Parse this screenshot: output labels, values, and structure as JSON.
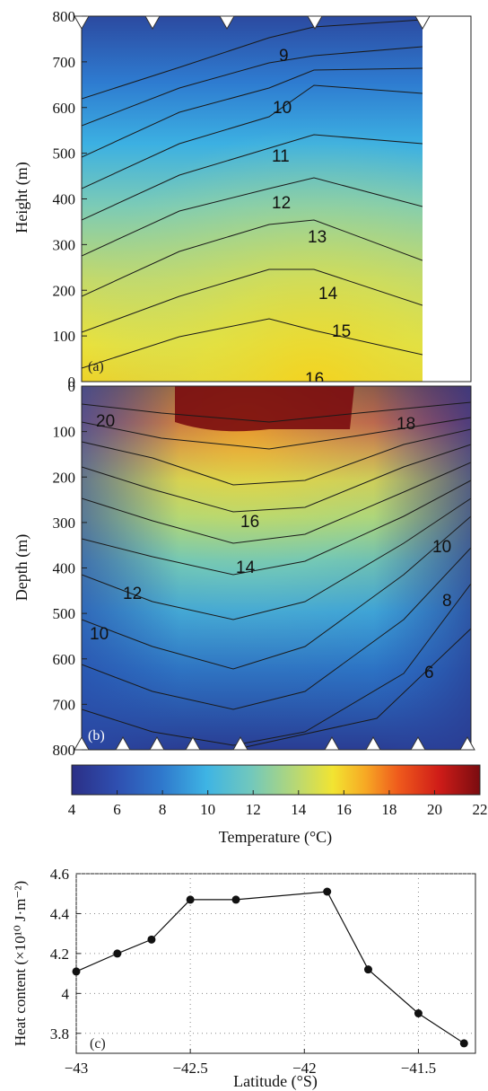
{
  "chart_data": [
    {
      "panel": "(a)",
      "type": "heatmap",
      "ylabel": "Height (m)",
      "yticks": [
        0,
        100,
        200,
        300,
        400,
        500,
        600,
        700,
        800
      ],
      "ylim": [
        0,
        800
      ],
      "contour_levels": [
        9,
        10,
        11,
        12,
        13,
        14,
        15,
        16
      ],
      "contour_labels": [
        "9",
        "10",
        "11",
        "12",
        "13",
        "14",
        "15",
        "16"
      ],
      "colormap": "jet",
      "note_markers": "inverted triangles along top edge at station positions"
    },
    {
      "panel": "(b)",
      "type": "heatmap",
      "ylabel": "Depth (m)",
      "yticks": [
        0,
        100,
        200,
        300,
        400,
        500,
        600,
        700,
        800
      ],
      "ylim": [
        0,
        800
      ],
      "contour_labels": [
        "20",
        "18",
        "16",
        "14",
        "12",
        "10",
        "10",
        "8",
        "6"
      ],
      "colormap": "jet",
      "note_markers": "triangles along bottom edge at station positions"
    },
    {
      "panel": "colorbar",
      "type": "colorbar",
      "xlabel": "Temperature (°C)",
      "ticks": [
        4,
        6,
        8,
        10,
        12,
        14,
        16,
        18,
        20,
        22
      ],
      "range": [
        4,
        22
      ]
    },
    {
      "panel": "(c)",
      "type": "line",
      "xlabel": "Latitude (°S)",
      "ylabel": "Heat content (×10¹⁰ J·m⁻²)",
      "x": [
        -43.0,
        -42.82,
        -42.67,
        -42.5,
        -42.3,
        -41.9,
        -41.72,
        -41.5,
        -41.3
      ],
      "y": [
        4.11,
        4.2,
        4.27,
        4.47,
        4.47,
        4.51,
        4.12,
        3.9,
        3.75
      ],
      "xlim": [
        -43.0,
        -41.25
      ],
      "ylim": [
        3.7,
        4.6
      ],
      "xticks": [
        -43,
        -42.5,
        -42,
        -41.5
      ],
      "xtick_labels": [
        "−43",
        "−42.5",
        "−42",
        "−41.5"
      ],
      "yticks": [
        3.8,
        4.0,
        4.2,
        4.4,
        4.6
      ],
      "ytick_labels": [
        "3.8",
        "4",
        "4.2",
        "4.4",
        "4.6"
      ],
      "grid": true
    }
  ]
}
